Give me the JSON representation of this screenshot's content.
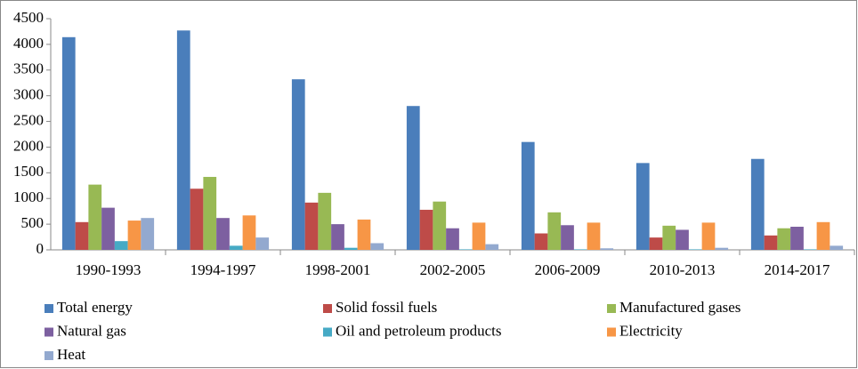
{
  "chart_data": {
    "type": "bar",
    "categories": [
      "1990-1993",
      "1994-1997",
      "1998-2001",
      "2002-2005",
      "2006-2009",
      "2010-2013",
      "2014-2017"
    ],
    "series": [
      {
        "name": "Total energy",
        "color": "#4a7ebb",
        "values": [
          4140,
          4270,
          3320,
          2800,
          2100,
          1690,
          1770
        ]
      },
      {
        "name": "Solid fossil fuels",
        "color": "#be4b48",
        "values": [
          540,
          1190,
          920,
          780,
          320,
          240,
          280
        ]
      },
      {
        "name": "Manufactured gases",
        "color": "#98b954",
        "values": [
          1270,
          1420,
          1110,
          940,
          730,
          470,
          420
        ]
      },
      {
        "name": "Natural gas",
        "color": "#7d60a0",
        "values": [
          820,
          620,
          500,
          420,
          480,
          390,
          450
        ]
      },
      {
        "name": "Oil and petroleum products",
        "color": "#46aac5",
        "values": [
          170,
          80,
          40,
          10,
          10,
          10,
          10
        ]
      },
      {
        "name": "Electricity",
        "color": "#f79646",
        "values": [
          570,
          670,
          590,
          530,
          530,
          530,
          540
        ]
      },
      {
        "name": "Heat",
        "color": "#93a9cf",
        "values": [
          620,
          240,
          130,
          110,
          30,
          40,
          80
        ]
      }
    ],
    "ylim": [
      0,
      4500
    ],
    "yticks": [
      0,
      500,
      1000,
      1500,
      2000,
      2500,
      3000,
      3500,
      4000,
      4500
    ],
    "grid": false,
    "legend": "bottom"
  }
}
